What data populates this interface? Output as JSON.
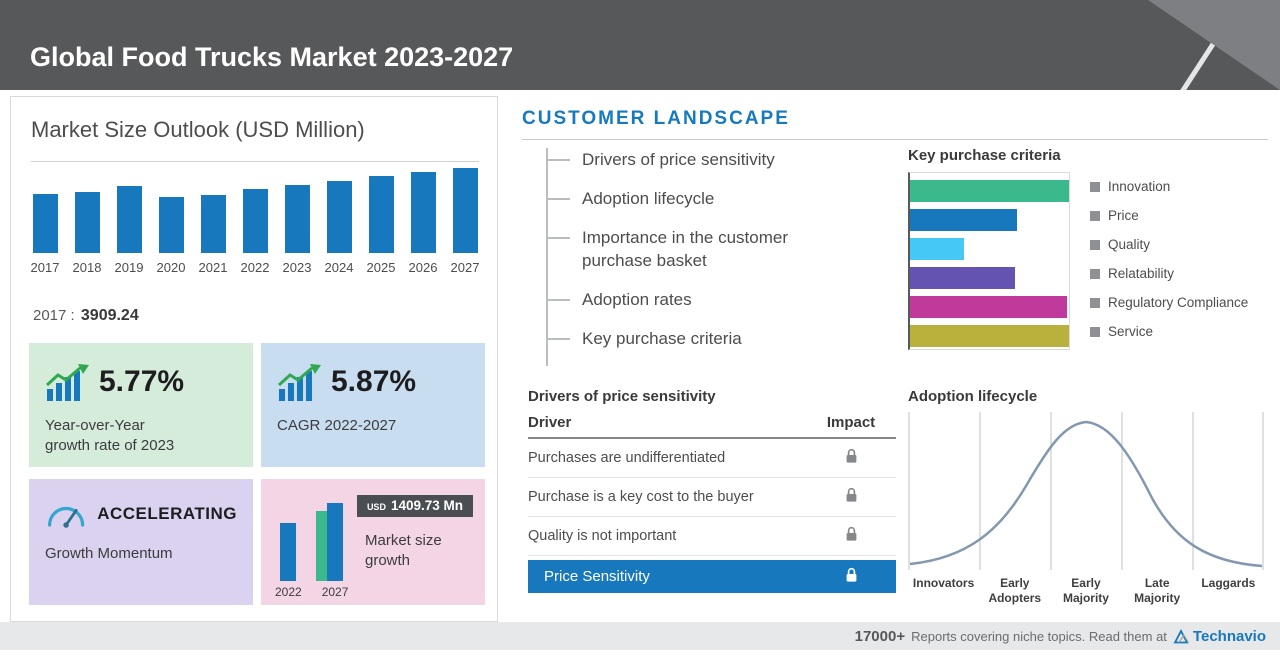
{
  "colors": {
    "accent_blue": "#1878be",
    "header_gray": "#57585a",
    "positive_green": "#3bb88c",
    "highlight_row_blue": "#1878be"
  },
  "header": {
    "title": "Global Food Trucks Market 2023-2027"
  },
  "left_panel": {
    "title": "Market Size Outlook (USD Million)",
    "base_year": {
      "year": "2017",
      "sep": ":",
      "value": "3909.24"
    },
    "cards": {
      "yoy": {
        "value": "5.77%",
        "line1": "Year-over-Year",
        "line2": "growth rate of 2023"
      },
      "cagr": {
        "value": "5.87%",
        "label": "CAGR 2022-2027"
      },
      "momentum": {
        "value": "ACCELERATING",
        "label": "Growth Momentum"
      },
      "growth": {
        "currency": "USD",
        "amount": "1409.73 Mn",
        "label": "Market size growth"
      }
    }
  },
  "customer_landscape": {
    "title": "CUSTOMER LANDSCAPE",
    "items": [
      "Drivers of price sensitivity",
      "Adoption lifecycle",
      "Importance in the customer purchase basket",
      "Adoption rates",
      "Key purchase criteria"
    ]
  },
  "key_purchase_criteria": {
    "title": "Key purchase criteria"
  },
  "price_table": {
    "title": "Drivers of price sensitivity",
    "col_driver": "Driver",
    "col_impact": "Impact",
    "rows": [
      "Purchases are undifferentiated",
      "Purchase is a key cost to the buyer",
      "Quality is not important"
    ],
    "highlight_row": "Price Sensitivity"
  },
  "adoption": {
    "title": "Adoption lifecycle"
  },
  "footer": {
    "count": "17000+",
    "text": "Reports covering niche topics. Read them at",
    "brand": "Technavio"
  },
  "chart_data": [
    {
      "id": "market-size-outlook",
      "type": "bar",
      "title": "Market Size Outlook (USD Million)",
      "categories": [
        "2017",
        "2018",
        "2019",
        "2020",
        "2021",
        "2022",
        "2023",
        "2024",
        "2025",
        "2026",
        "2027"
      ],
      "values": [
        3909.24,
        4080,
        4440,
        3720,
        3860,
        4266.4,
        4512.6,
        4820,
        5140,
        5420,
        5676.1
      ],
      "labeled_points": {
        "2017": 3909.24
      },
      "xlabel": "",
      "ylabel": "USD Million",
      "ylim": [
        0,
        6000
      ],
      "bar_color": "#1878be",
      "grid": "top-line-only",
      "note": "only the 2017 value (3909.24) is labeled in the image; other values estimated from bar heights"
    },
    {
      "id": "market-size-growth",
      "type": "bar",
      "title": "Market size growth",
      "categories": [
        "2022",
        "2027"
      ],
      "values": [
        4266.4,
        5676.1
      ],
      "growth_value": 1409.73,
      "annotation": "USD 1409.73 Mn",
      "ylim": [
        0,
        6000
      ],
      "colors": {
        "bar": "#1878be",
        "growth": "#3bb88c"
      }
    },
    {
      "id": "key-purchase-criteria",
      "type": "bar",
      "orientation": "horizontal",
      "title": "Key purchase criteria",
      "categories": [
        "Innovation",
        "Price",
        "Quality",
        "Relatability",
        "Regulatory Compliance",
        "Service"
      ],
      "values": [
        100,
        67,
        34,
        66,
        99,
        100
      ],
      "unit": "relative bar length, % of axis width (estimated, unlabeled axis)",
      "colors": [
        "#3bb88c",
        "#1878be",
        "#45c8f5",
        "#6553b2",
        "#c03a9c",
        "#b9b13d"
      ],
      "legend_position": "right"
    },
    {
      "id": "adoption-lifecycle",
      "type": "area",
      "title": "Adoption lifecycle",
      "categories": [
        "Innovators",
        "Early Adopters",
        "Early Majority",
        "Late Majority",
        "Laggards"
      ],
      "description": "bell curve over five equal adopter segments, peak in Early Majority"
    }
  ]
}
